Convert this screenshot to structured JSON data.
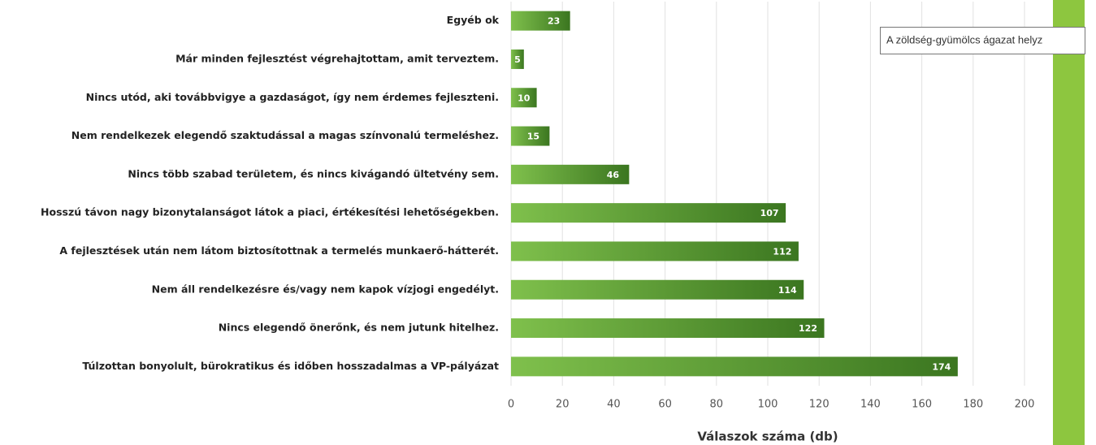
{
  "chart_data": {
    "type": "bar",
    "orientation": "horizontal",
    "categories": [
      "Egyéb ok",
      "Már minden fejlesztést végrehajtottam, amit terveztem.",
      "Nincs utód, aki továbbvigye a gazdaságot, így nem érdemes fejleszteni.",
      "Nem rendelkezek elegendő szaktudással a magas színvonalú termeléshez.",
      "Nincs több szabad területem, és nincs kivágandó ültetvény sem.",
      "Hosszú távon nagy bizonytalanságot látok a piaci, értékesítési lehetőségekben.",
      "A fejlesztések után nem látom biztosítottnak a termelés munkaerő-hátterét.",
      "Nem áll rendelkezésre és/vagy nem kapok vízjogi engedélyt.",
      "Nincs elegendő önerőnk, és nem jutunk hitelhez.",
      "Túlzottan bonyolult, bürokratikus és időben hosszadalmas a VP-pályázat"
    ],
    "values": [
      23,
      5,
      10,
      15,
      46,
      107,
      112,
      114,
      122,
      174
    ],
    "colors": [
      "#7fc04c",
      "#3b7620"
    ],
    "xlim": [
      0,
      200
    ],
    "xticks": [
      0,
      20,
      40,
      60,
      80,
      100,
      120,
      140,
      160,
      180,
      200
    ],
    "grid": true,
    "x_label": "Válaszok száma (db)"
  },
  "tooltip": "A zöldség-gyümölcs ágazat helyz"
}
